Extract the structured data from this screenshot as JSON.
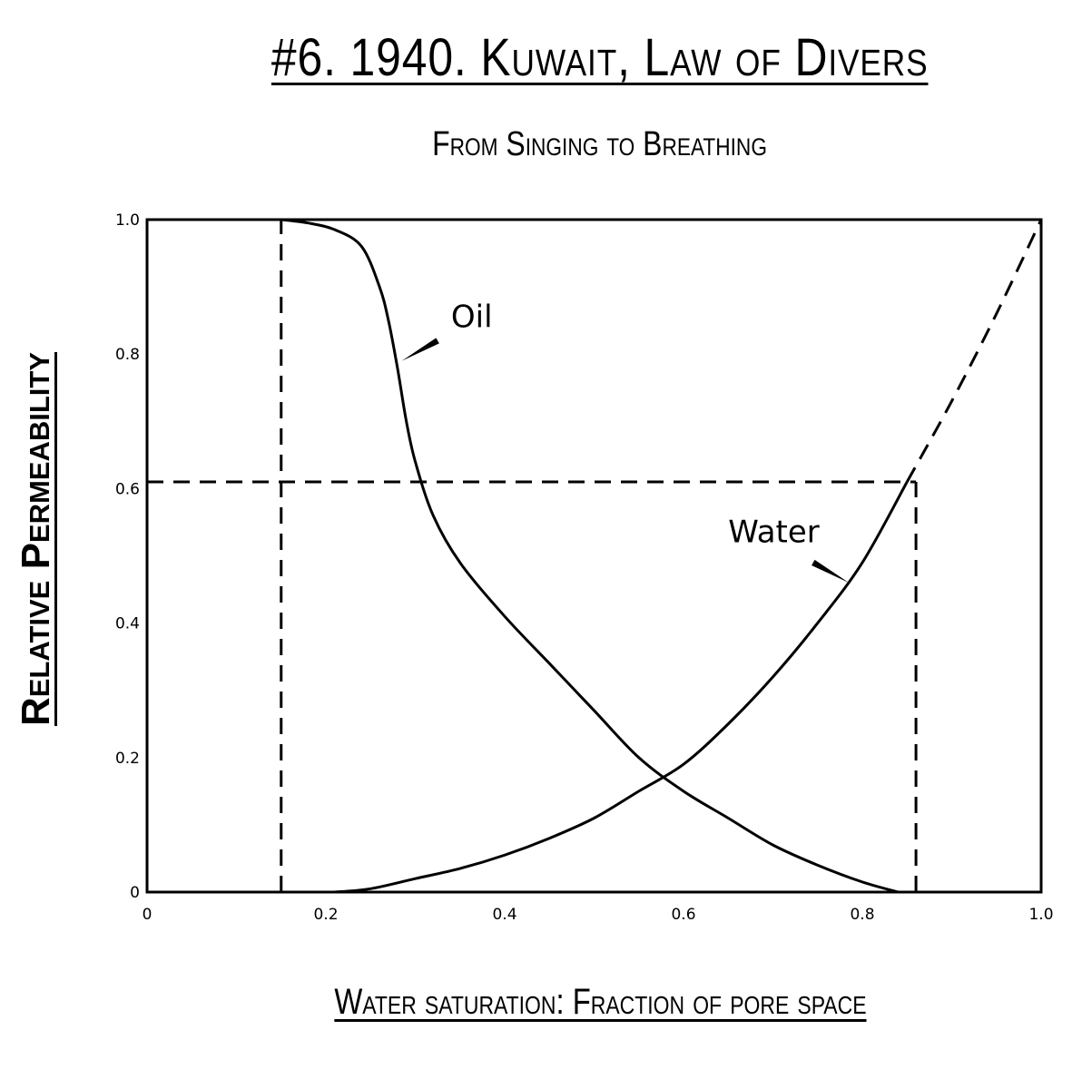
{
  "title": "#6. 1940. Kuwait, Law of Divers",
  "subtitle": "From Singing to Breathing",
  "chart_data": {
    "type": "line",
    "xlabel": "Water saturation: Fraction of pore space",
    "ylabel": "Relative Permeability",
    "xlim": [
      0,
      1.0
    ],
    "ylim": [
      0,
      1.0
    ],
    "x_ticks": [
      "0",
      "0.2",
      "0.4",
      "0.6",
      "0.8",
      "1.0"
    ],
    "y_ticks": [
      "0",
      "0.2",
      "0.4",
      "0.6",
      "0.8",
      "1.0"
    ],
    "grid": false,
    "series": [
      {
        "name": "Oil",
        "style": "solid",
        "x": [
          0.15,
          0.18,
          0.21,
          0.24,
          0.26,
          0.27,
          0.28,
          0.29,
          0.3,
          0.32,
          0.35,
          0.4,
          0.45,
          0.5,
          0.55,
          0.6,
          0.65,
          0.7,
          0.75,
          0.8,
          0.84
        ],
        "y": [
          1.0,
          0.995,
          0.985,
          0.96,
          0.9,
          0.85,
          0.78,
          0.7,
          0.64,
          0.56,
          0.49,
          0.41,
          0.34,
          0.27,
          0.2,
          0.15,
          0.11,
          0.07,
          0.04,
          0.015,
          0.0
        ]
      },
      {
        "name": "Water",
        "style": "solid",
        "x": [
          0.21,
          0.25,
          0.3,
          0.35,
          0.4,
          0.45,
          0.5,
          0.55,
          0.6,
          0.65,
          0.7,
          0.75,
          0.8,
          0.85
        ],
        "y": [
          0.0,
          0.005,
          0.02,
          0.035,
          0.055,
          0.08,
          0.11,
          0.15,
          0.19,
          0.25,
          0.32,
          0.4,
          0.49,
          0.61
        ]
      },
      {
        "name": "",
        "style": "dashed",
        "x": [
          0.85,
          0.9,
          0.95,
          1.0
        ],
        "y": [
          0.61,
          0.73,
          0.86,
          1.0
        ]
      }
    ],
    "reference_lines": [
      {
        "style": "dashed",
        "x": [
          0.15,
          0.15
        ],
        "y": [
          0,
          1.0
        ]
      },
      {
        "style": "dashed",
        "x": [
          0,
          0.86
        ],
        "y": [
          0.61,
          0.61
        ]
      },
      {
        "style": "dashed",
        "x": [
          0.86,
          0.86
        ],
        "y": [
          0,
          0.61
        ]
      }
    ],
    "annotations": [
      {
        "text": "Oil",
        "x": 0.34,
        "y": 0.84,
        "pointer_to": [
          0.285,
          0.79
        ],
        "pointer_from": [
          0.325,
          0.82
        ]
      },
      {
        "text": "Water",
        "x": 0.65,
        "y": 0.52,
        "pointer_to": [
          0.785,
          0.46
        ],
        "pointer_from": [
          0.745,
          0.49
        ]
      }
    ]
  }
}
